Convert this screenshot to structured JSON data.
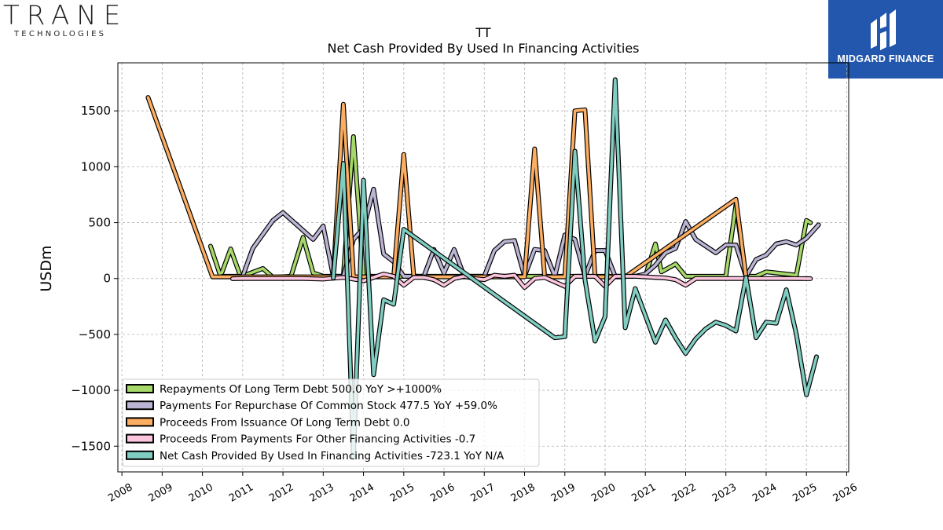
{
  "branding": {
    "left_logo_word": "TRANE",
    "left_logo_sub": "TECHNOLOGIES",
    "right_logo_text": "MIDGARD FINANCE",
    "right_logo_bg": "#2357ad"
  },
  "chart_data": {
    "type": "line",
    "title": "TT",
    "subtitle": "Net Cash Provided By Used In Financing Activities",
    "xlabel": "",
    "ylabel": "USDm",
    "xlim": [
      2007.9,
      2026.05
    ],
    "ylim": [
      -1730,
      1930
    ],
    "x_ticks": [
      "2008",
      "2009",
      "2010",
      "2011",
      "2012",
      "2013",
      "2014",
      "2015",
      "2016",
      "2017",
      "2018",
      "2019",
      "2020",
      "2021",
      "2022",
      "2023",
      "2024",
      "2025",
      "2026"
    ],
    "y_ticks": [
      "1500",
      "1000",
      "500",
      "0",
      "−500",
      "−1000",
      "−1500"
    ],
    "y_tick_values": [
      1500,
      1000,
      500,
      0,
      -500,
      -1000,
      -1500
    ],
    "grid": true,
    "legend_position": "lower-left",
    "series": [
      {
        "name": "Repayments Of Long Term Debt",
        "legend": "Repayments Of Long Term Debt  500.0 YoY >+1000%",
        "color": "#a6d96a",
        "points": [
          [
            2010.2,
            290
          ],
          [
            2010.45,
            20
          ],
          [
            2010.7,
            265
          ],
          [
            2010.95,
            15
          ],
          [
            2011.5,
            90
          ],
          [
            2011.75,
            10
          ],
          [
            2012.2,
            20
          ],
          [
            2012.5,
            370
          ],
          [
            2012.75,
            50
          ],
          [
            2013.0,
            20
          ],
          [
            2013.25,
            20
          ],
          [
            2013.5,
            20
          ],
          [
            2013.75,
            1270
          ],
          [
            2014.0,
            20
          ],
          [
            2014.25,
            20
          ],
          [
            2014.5,
            20
          ],
          [
            2014.75,
            20
          ],
          [
            2015.0,
            20
          ],
          [
            2015.25,
            20
          ],
          [
            2015.5,
            20
          ],
          [
            2015.75,
            20
          ],
          [
            2016.0,
            20
          ],
          [
            2016.25,
            20
          ],
          [
            2016.5,
            20
          ],
          [
            2016.75,
            20
          ],
          [
            2017.0,
            20
          ],
          [
            2017.25,
            20
          ],
          [
            2017.5,
            20
          ],
          [
            2017.75,
            20
          ],
          [
            2018.0,
            20
          ],
          [
            2018.25,
            20
          ],
          [
            2018.5,
            20
          ],
          [
            2018.75,
            20
          ],
          [
            2019.0,
            20
          ],
          [
            2019.25,
            20
          ],
          [
            2019.5,
            20
          ],
          [
            2019.75,
            20
          ],
          [
            2020.0,
            20
          ],
          [
            2020.25,
            20
          ],
          [
            2020.5,
            20
          ],
          [
            2020.75,
            20
          ],
          [
            2021.0,
            20
          ],
          [
            2021.25,
            310
          ],
          [
            2021.4,
            60
          ],
          [
            2021.75,
            130
          ],
          [
            2022.0,
            20
          ],
          [
            2022.25,
            20
          ],
          [
            2022.5,
            20
          ],
          [
            2022.75,
            20
          ],
          [
            2023.0,
            20
          ],
          [
            2023.25,
            660
          ],
          [
            2023.5,
            20
          ],
          [
            2023.75,
            20
          ],
          [
            2024.0,
            60
          ],
          [
            2024.25,
            50
          ],
          [
            2024.75,
            30
          ],
          [
            2025.0,
            520
          ],
          [
            2025.1,
            500
          ]
        ]
      },
      {
        "name": "Payments For Repurchase Of Common Stock",
        "legend": "Payments For Repurchase Of Common Stock  477.5 YoY +59.0%",
        "color": "#bcb4d4",
        "points": [
          [
            2010.5,
            20
          ],
          [
            2010.75,
            20
          ],
          [
            2011.0,
            20
          ],
          [
            2011.25,
            270
          ],
          [
            2011.75,
            520
          ],
          [
            2012.0,
            590
          ],
          [
            2012.25,
            510
          ],
          [
            2012.75,
            350
          ],
          [
            2013.0,
            470
          ],
          [
            2013.25,
            20
          ],
          [
            2013.5,
            20
          ],
          [
            2013.75,
            350
          ],
          [
            2014.0,
            450
          ],
          [
            2014.25,
            800
          ],
          [
            2014.5,
            220
          ],
          [
            2014.75,
            150
          ],
          [
            2015.0,
            20
          ],
          [
            2015.25,
            20
          ],
          [
            2015.5,
            20
          ],
          [
            2015.75,
            260
          ],
          [
            2016.0,
            50
          ],
          [
            2016.25,
            260
          ],
          [
            2016.5,
            20
          ],
          [
            2016.75,
            20
          ],
          [
            2017.0,
            20
          ],
          [
            2017.25,
            250
          ],
          [
            2017.5,
            330
          ],
          [
            2017.75,
            340
          ],
          [
            2018.0,
            20
          ],
          [
            2018.25,
            260
          ],
          [
            2018.5,
            250
          ],
          [
            2018.75,
            20
          ],
          [
            2019.0,
            390
          ],
          [
            2019.25,
            350
          ],
          [
            2019.5,
            20
          ],
          [
            2019.75,
            250
          ],
          [
            2020.0,
            250
          ],
          [
            2020.25,
            20
          ],
          [
            2020.5,
            20
          ],
          [
            2020.75,
            20
          ],
          [
            2021.0,
            40
          ],
          [
            2021.25,
            120
          ],
          [
            2021.5,
            230
          ],
          [
            2021.75,
            270
          ],
          [
            2022.0,
            510
          ],
          [
            2022.25,
            350
          ],
          [
            2022.75,
            230
          ],
          [
            2023.0,
            300
          ],
          [
            2023.25,
            300
          ],
          [
            2023.5,
            20
          ],
          [
            2023.75,
            170
          ],
          [
            2024.0,
            210
          ],
          [
            2024.25,
            310
          ],
          [
            2024.5,
            330
          ],
          [
            2024.75,
            300
          ],
          [
            2025.0,
            360
          ],
          [
            2025.3,
            480
          ]
        ]
      },
      {
        "name": "Proceeds From Issuance Of Long Term Debt",
        "legend": "Proceeds From Issuance Of Long Term Debt  0.0",
        "color": "#fdae61",
        "points": [
          [
            2008.65,
            1620
          ],
          [
            2010.25,
            15
          ],
          [
            2010.5,
            15
          ],
          [
            2010.75,
            15
          ],
          [
            2011.0,
            15
          ],
          [
            2011.5,
            15
          ],
          [
            2012.0,
            15
          ],
          [
            2012.5,
            15
          ],
          [
            2013.0,
            15
          ],
          [
            2013.25,
            15
          ],
          [
            2013.5,
            1560
          ],
          [
            2013.75,
            15
          ],
          [
            2014.0,
            15
          ],
          [
            2014.25,
            15
          ],
          [
            2014.5,
            15
          ],
          [
            2014.75,
            15
          ],
          [
            2015.0,
            1110
          ],
          [
            2015.25,
            15
          ],
          [
            2015.5,
            15
          ],
          [
            2015.75,
            15
          ],
          [
            2016.0,
            15
          ],
          [
            2016.5,
            15
          ],
          [
            2017.0,
            15
          ],
          [
            2017.5,
            15
          ],
          [
            2018.0,
            15
          ],
          [
            2018.25,
            1160
          ],
          [
            2018.5,
            15
          ],
          [
            2018.75,
            15
          ],
          [
            2019.0,
            15
          ],
          [
            2019.25,
            1500
          ],
          [
            2019.5,
            1510
          ],
          [
            2019.75,
            15
          ],
          [
            2020.0,
            15
          ],
          [
            2020.25,
            15
          ],
          [
            2020.5,
            15
          ],
          [
            2023.25,
            710
          ],
          [
            2023.5,
            15
          ]
        ]
      },
      {
        "name": "Proceeds From Payments For Other Financing Activities",
        "legend": "Proceeds From Payments For Other Financing Activities  -0.7",
        "color": "#fcc5de",
        "points": [
          [
            2010.75,
            -2
          ],
          [
            2011.0,
            0
          ],
          [
            2011.5,
            0
          ],
          [
            2012.0,
            0
          ],
          [
            2012.5,
            0
          ],
          [
            2013.0,
            -5
          ],
          [
            2013.5,
            10
          ],
          [
            2014.0,
            -20
          ],
          [
            2014.5,
            40
          ],
          [
            2014.75,
            20
          ],
          [
            2015.0,
            -60
          ],
          [
            2015.25,
            10
          ],
          [
            2015.5,
            10
          ],
          [
            2015.75,
            -10
          ],
          [
            2016.0,
            -60
          ],
          [
            2016.25,
            0
          ],
          [
            2016.5,
            20
          ],
          [
            2016.75,
            0
          ],
          [
            2017.0,
            -10
          ],
          [
            2017.25,
            30
          ],
          [
            2017.5,
            20
          ],
          [
            2017.75,
            30
          ],
          [
            2018.0,
            -80
          ],
          [
            2018.25,
            0
          ],
          [
            2018.5,
            10
          ],
          [
            2018.75,
            -30
          ],
          [
            2019.0,
            -70
          ],
          [
            2019.25,
            20
          ],
          [
            2019.5,
            20
          ],
          [
            2019.75,
            20
          ],
          [
            2020.0,
            -70
          ],
          [
            2020.25,
            20
          ],
          [
            2020.5,
            20
          ],
          [
            2020.75,
            20
          ],
          [
            2021.0,
            15
          ],
          [
            2021.5,
            5
          ],
          [
            2021.75,
            -10
          ],
          [
            2022.0,
            -60
          ],
          [
            2022.25,
            0
          ],
          [
            2022.75,
            0
          ],
          [
            2023.0,
            0
          ],
          [
            2023.5,
            0
          ],
          [
            2024.0,
            0
          ],
          [
            2024.5,
            0
          ],
          [
            2025.0,
            -1
          ],
          [
            2025.1,
            -1
          ]
        ]
      },
      {
        "name": "Net Cash Provided By Used In Financing Activities",
        "legend": "Net Cash Provided By Used In Financing Activities  -723.1 YoY N/A",
        "color": "#80cdc1",
        "points": [
          [
            2013.25,
            5
          ],
          [
            2013.5,
            1030
          ],
          [
            2013.75,
            -1600
          ],
          [
            2014.0,
            880
          ],
          [
            2014.25,
            -860
          ],
          [
            2014.5,
            -190
          ],
          [
            2014.75,
            -230
          ],
          [
            2015.0,
            440
          ],
          [
            2018.75,
            -530
          ],
          [
            2019.0,
            -520
          ],
          [
            2019.25,
            1140
          ],
          [
            2019.5,
            -10
          ],
          [
            2019.75,
            -560
          ],
          [
            2020.0,
            -340
          ],
          [
            2020.25,
            1780
          ],
          [
            2020.5,
            -440
          ],
          [
            2020.75,
            -90
          ],
          [
            2021.0,
            -330
          ],
          [
            2021.25,
            -570
          ],
          [
            2021.5,
            -370
          ],
          [
            2021.75,
            -530
          ],
          [
            2022.0,
            -670
          ],
          [
            2022.25,
            -540
          ],
          [
            2022.5,
            -450
          ],
          [
            2022.75,
            -390
          ],
          [
            2023.0,
            -420
          ],
          [
            2023.25,
            -470
          ],
          [
            2023.5,
            10
          ],
          [
            2023.75,
            -530
          ],
          [
            2024.0,
            -390
          ],
          [
            2024.25,
            -400
          ],
          [
            2024.5,
            -100
          ],
          [
            2024.75,
            -500
          ],
          [
            2025.0,
            -1040
          ],
          [
            2025.25,
            -700
          ]
        ]
      }
    ]
  }
}
